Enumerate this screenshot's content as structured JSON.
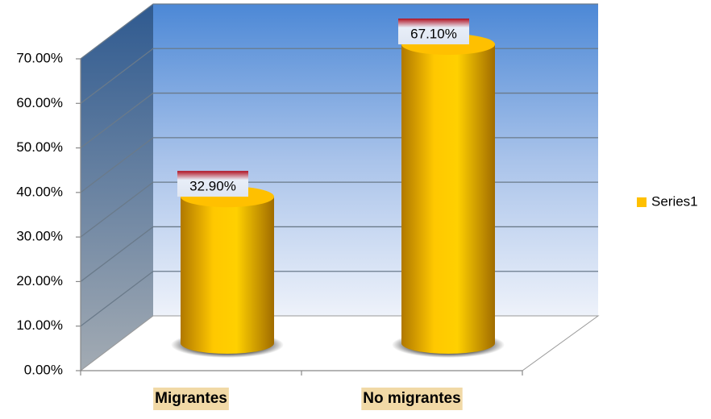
{
  "chart_data": {
    "type": "bar",
    "categories": [
      "Migrantes",
      "No migrantes"
    ],
    "series": [
      {
        "name": "Series1",
        "color": "#ffc000",
        "values": [
          32.9,
          67.1
        ],
        "value_labels": [
          "32.90%",
          "67.10%"
        ]
      }
    ],
    "ylim": [
      0,
      70
    ],
    "yticks": [
      {
        "value": 0,
        "label": "0.00%"
      },
      {
        "value": 10,
        "label": "10.00%"
      },
      {
        "value": 20,
        "label": "20.00%"
      },
      {
        "value": 30,
        "label": "30.00%"
      },
      {
        "value": 40,
        "label": "40.00%"
      },
      {
        "value": 50,
        "label": "50.00%"
      },
      {
        "value": 60,
        "label": "60.00%"
      },
      {
        "value": 70,
        "label": "70.00%"
      }
    ],
    "grid": true,
    "legend": "right"
  }
}
